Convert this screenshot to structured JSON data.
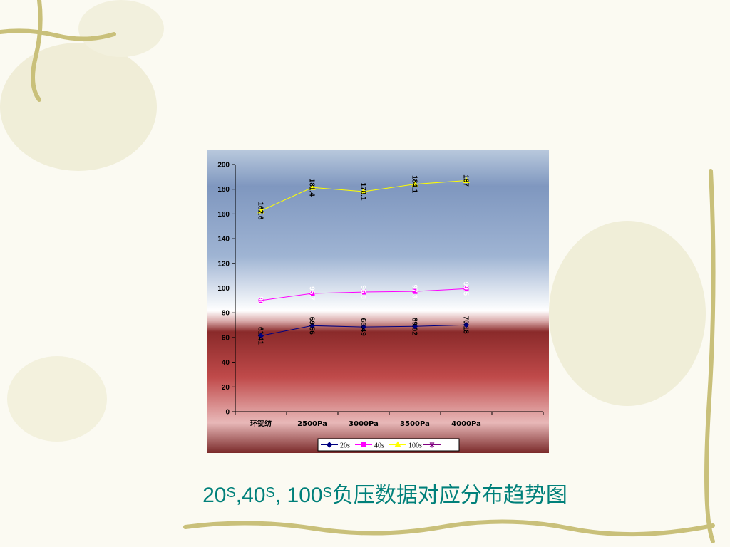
{
  "chart_data": {
    "type": "line",
    "title_parts": [
      "20",
      "S",
      ",40",
      "S",
      ", 100",
      "S",
      "负压数据对应分布趋势图"
    ],
    "categories": [
      "环锭纺",
      "2500Pa",
      "3000Pa",
      "3500Pa",
      "4000Pa",
      null
    ],
    "series": [
      {
        "name": "20s",
        "color": "#000080",
        "marker": "diamond",
        "label_color": "#000000",
        "values": [
          61.41,
          69.56,
          68.49,
          69.02,
          70.18,
          null
        ]
      },
      {
        "name": "40s",
        "color": "#ff00ff",
        "marker": "square",
        "label_color": "#ffffff",
        "values": [
          90,
          95.7,
          96.8,
          97.3,
          99.5,
          null
        ]
      },
      {
        "name": "100s",
        "color": "#ffff00",
        "marker": "triangle",
        "label_color": "#000000",
        "values": [
          162.6,
          181.4,
          178.1,
          184.1,
          187,
          null
        ]
      },
      {
        "name": null,
        "color": "#800080",
        "marker": "star",
        "values": [
          null,
          null,
          null,
          null,
          null,
          null
        ]
      }
    ],
    "ylim": [
      0,
      200
    ],
    "yticks": [
      0,
      20,
      40,
      60,
      80,
      100,
      120,
      140,
      160,
      180,
      200
    ]
  }
}
